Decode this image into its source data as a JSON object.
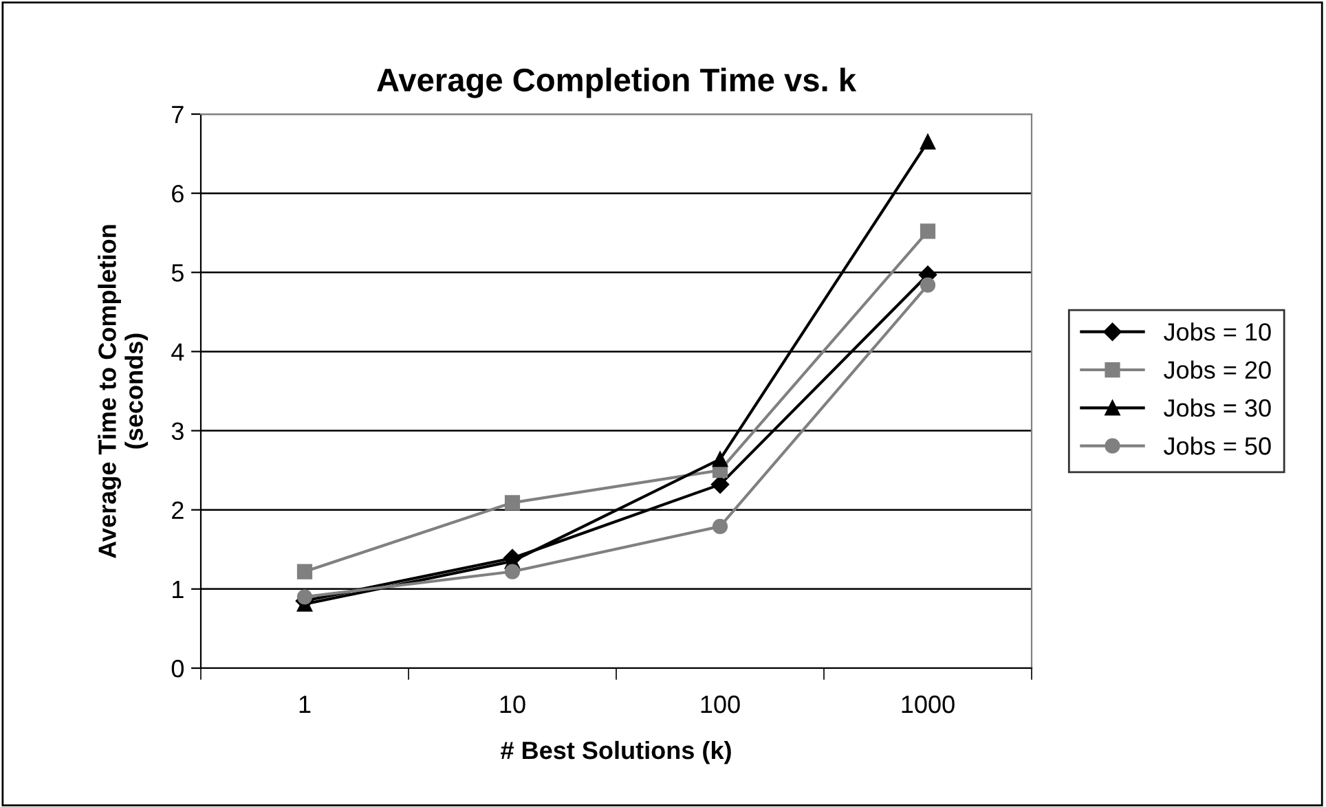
{
  "chart_data": {
    "type": "line",
    "title": "Average Completion Time vs. k",
    "xlabel": "# Best Solutions (k)",
    "ylabel": "Average Time to Completion\n(seconds)",
    "categories": [
      "1",
      "10",
      "100",
      "1000"
    ],
    "series": [
      {
        "name": "Jobs = 10",
        "color": "#000000",
        "marker": "diamond",
        "values": [
          0.85,
          1.39,
          2.32,
          4.97
        ]
      },
      {
        "name": "Jobs = 20",
        "color": "#808080",
        "marker": "square",
        "values": [
          1.22,
          2.09,
          2.5,
          5.52
        ]
      },
      {
        "name": "Jobs = 30",
        "color": "#000000",
        "marker": "triangle",
        "values": [
          0.81,
          1.35,
          2.64,
          6.65
        ]
      },
      {
        "name": "Jobs = 50",
        "color": "#808080",
        "marker": "circle",
        "values": [
          0.9,
          1.22,
          1.79,
          4.84
        ]
      }
    ],
    "ylim": [
      0,
      7
    ],
    "yticks": [
      0,
      1,
      2,
      3,
      4,
      5,
      6,
      7
    ],
    "grid": "y",
    "legend": "right",
    "line_style": "solid"
  }
}
